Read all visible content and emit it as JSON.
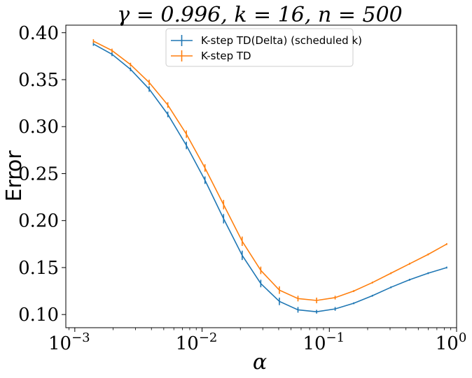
{
  "chart_data": {
    "type": "line",
    "title": "γ = 0.996, k = 16, n = 500",
    "xlabel": "α",
    "ylabel": "Error",
    "xscale": "log",
    "xlim": [
      0.00085,
      1.0
    ],
    "ylim": [
      0.086,
      0.408
    ],
    "x_ticks": [
      {
        "value": 0.001,
        "base": "10",
        "exp": "−3"
      },
      {
        "value": 0.01,
        "base": "10",
        "exp": "−2"
      },
      {
        "value": 0.1,
        "base": "10",
        "exp": "−1"
      },
      {
        "value": 1.0,
        "base": "10",
        "exp": "0"
      }
    ],
    "y_ticks": [
      "0.10",
      "0.15",
      "0.20",
      "0.25",
      "0.30",
      "0.35",
      "0.40"
    ],
    "legend_position": "upper center",
    "grid": false,
    "x": [
      0.0014,
      0.00196,
      0.00274,
      0.00384,
      0.00538,
      0.00753,
      0.01054,
      0.01476,
      0.02066,
      0.02893,
      0.0405,
      0.0567,
      0.0794,
      0.1111,
      0.1556,
      0.2178,
      0.3049,
      0.4269,
      0.5977,
      0.8367
    ],
    "series": [
      {
        "name": "K-step TD(Delta) (scheduled k)",
        "color": "#1f77b4",
        "values": [
          0.388,
          0.377,
          0.361,
          0.34,
          0.313,
          0.28,
          0.243,
          0.202,
          0.163,
          0.133,
          0.114,
          0.105,
          0.103,
          0.106,
          0.112,
          0.12,
          0.129,
          0.137,
          0.144,
          0.15
        ],
        "errors": [
          0.002,
          0.002,
          0.002,
          0.003,
          0.003,
          0.004,
          0.004,
          0.005,
          0.005,
          0.004,
          0.004,
          0.003,
          0.002,
          0.002,
          0.001,
          0.001,
          0.001,
          0.001,
          0.001,
          0.001
        ]
      },
      {
        "name": "K-step TD",
        "color": "#ff7f0e",
        "values": [
          0.391,
          0.381,
          0.366,
          0.347,
          0.323,
          0.292,
          0.256,
          0.217,
          0.178,
          0.147,
          0.126,
          0.117,
          0.115,
          0.118,
          0.125,
          0.134,
          0.144,
          0.154,
          0.164,
          0.175
        ],
        "errors": [
          0.002,
          0.002,
          0.002,
          0.003,
          0.003,
          0.004,
          0.004,
          0.005,
          0.005,
          0.004,
          0.004,
          0.003,
          0.003,
          0.002,
          0.001,
          0.001,
          0.001,
          0.001,
          0.001,
          0.001
        ]
      }
    ]
  }
}
